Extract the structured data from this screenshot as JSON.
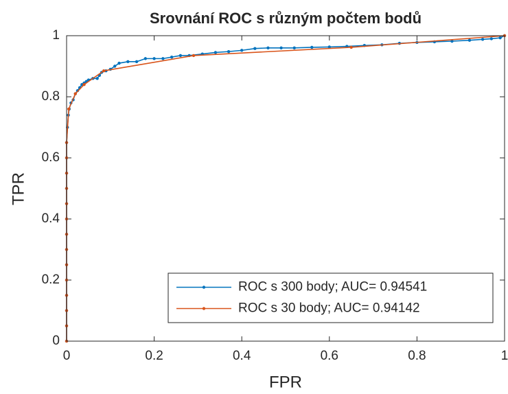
{
  "chart_data": {
    "type": "line",
    "title": "Srovnání ROC s různým počtem bodů",
    "xlabel": "FPR",
    "ylabel": "TPR",
    "xlim": [
      0,
      1
    ],
    "ylim": [
      0,
      1
    ],
    "xticks": [
      0,
      0.2,
      0.4,
      0.6,
      0.8,
      1
    ],
    "yticks": [
      0,
      0.2,
      0.4,
      0.6,
      0.8,
      1
    ],
    "grid": false,
    "legend": "southeast",
    "series": [
      {
        "name": "ROC s 300 body; AUC= 0.94541",
        "color": "#0072BD",
        "x": [
          0,
          0,
          0,
          0,
          0,
          0,
          0,
          0,
          0,
          0,
          0,
          0,
          0,
          0,
          0.002,
          0.004,
          0.006,
          0.01,
          0.015,
          0.02,
          0.025,
          0.03,
          0.035,
          0.04,
          0.045,
          0.05,
          0.06,
          0.07,
          0.075,
          0.08,
          0.09,
          0.1,
          0.11,
          0.12,
          0.14,
          0.16,
          0.18,
          0.2,
          0.22,
          0.24,
          0.26,
          0.28,
          0.31,
          0.34,
          0.37,
          0.4,
          0.43,
          0.46,
          0.49,
          0.52,
          0.56,
          0.6,
          0.64,
          0.68,
          0.72,
          0.76,
          0.8,
          0.84,
          0.88,
          0.92,
          0.95,
          0.97,
          0.99,
          1
        ],
        "values": [
          0,
          0.05,
          0.1,
          0.15,
          0.2,
          0.25,
          0.3,
          0.35,
          0.4,
          0.45,
          0.5,
          0.55,
          0.6,
          0.65,
          0.7,
          0.74,
          0.76,
          0.78,
          0.79,
          0.81,
          0.82,
          0.83,
          0.84,
          0.845,
          0.85,
          0.855,
          0.86,
          0.86,
          0.87,
          0.88,
          0.885,
          0.89,
          0.9,
          0.91,
          0.915,
          0.915,
          0.925,
          0.925,
          0.925,
          0.93,
          0.935,
          0.935,
          0.94,
          0.945,
          0.948,
          0.952,
          0.958,
          0.96,
          0.96,
          0.96,
          0.962,
          0.963,
          0.965,
          0.968,
          0.97,
          0.975,
          0.978,
          0.98,
          0.982,
          0.985,
          0.988,
          0.99,
          0.993,
          1
        ]
      },
      {
        "name": "ROC s 30 body; AUC= 0.94142",
        "color": "#D95319",
        "x": [
          0,
          0,
          0,
          0,
          0,
          0,
          0,
          0,
          0,
          0,
          0,
          0,
          0,
          0,
          0.005,
          0.02,
          0.04,
          0.085,
          0.29,
          0.65,
          1
        ],
        "values": [
          0,
          0.05,
          0.1,
          0.15,
          0.2,
          0.25,
          0.3,
          0.35,
          0.4,
          0.45,
          0.5,
          0.55,
          0.6,
          0.65,
          0.76,
          0.81,
          0.84,
          0.885,
          0.935,
          0.962,
          1
        ]
      }
    ]
  }
}
